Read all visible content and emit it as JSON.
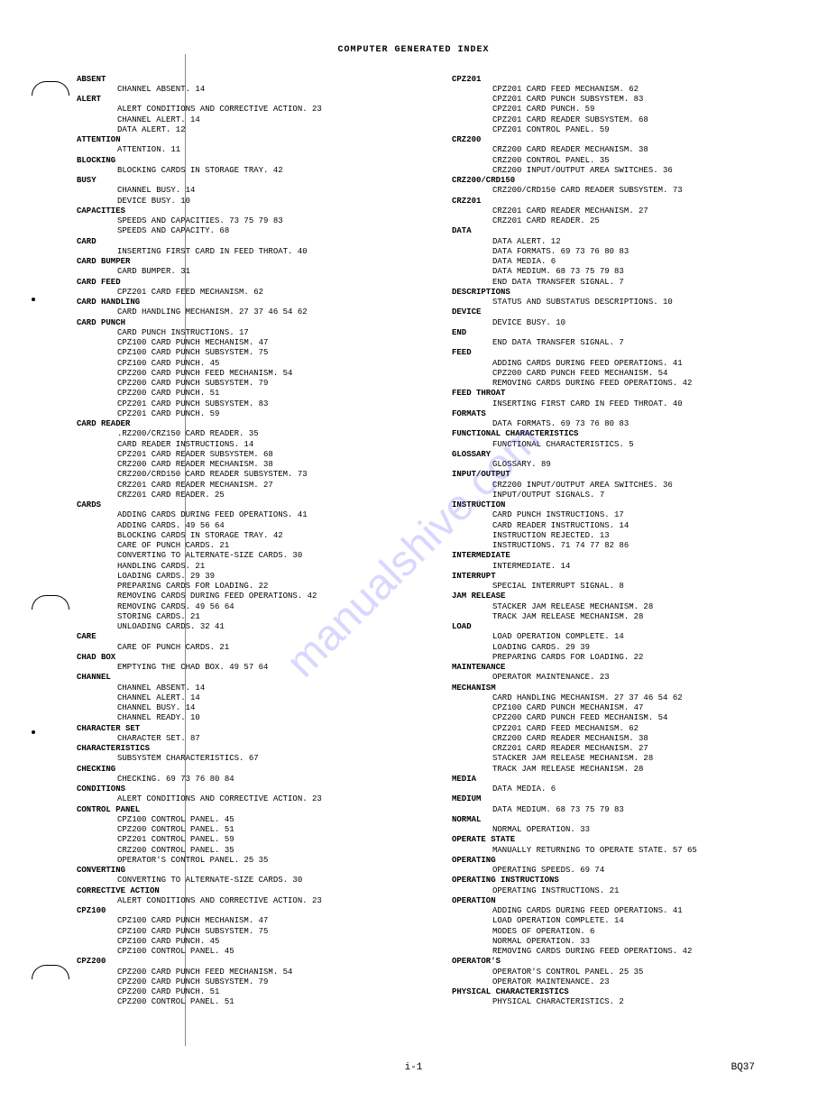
{
  "title": "COMPUTER GENERATED INDEX",
  "watermark": "manualshive.com",
  "footer": {
    "center": "i-1",
    "right": "BQ37"
  },
  "left_column": [
    {
      "term": "ABSENT",
      "entries": [
        "CHANNEL ABSENT. 14"
      ]
    },
    {
      "term": "ALERT",
      "entries": [
        "ALERT CONDITIONS AND CORRECTIVE ACTION. 23",
        "CHANNEL ALERT. 14",
        "DATA ALERT. 12"
      ]
    },
    {
      "term": "ATTENTION",
      "entries": [
        "ATTENTION. 11"
      ]
    },
    {
      "term": "BLOCKING",
      "entries": [
        "BLOCKING CARDS IN STORAGE TRAY. 42"
      ]
    },
    {
      "term": "BUSY",
      "entries": [
        "CHANNEL BUSY. 14",
        "DEVICE BUSY. 10"
      ]
    },
    {
      "term": "CAPACITIES",
      "entries": [
        "SPEEDS AND CAPACITIES. 73 75 79 83",
        "SPEEDS AND CAPACITY. 68"
      ]
    },
    {
      "term": "CARD",
      "entries": [
        "INSERTING FIRST CARD IN FEED THROAT. 40"
      ]
    },
    {
      "term": "CARD BUMPER",
      "entries": [
        "CARD BUMPER. 31"
      ]
    },
    {
      "term": "CARD FEED",
      "entries": [
        "CPZ201 CARD FEED MECHANISM. 62"
      ]
    },
    {
      "term": "CARD HANDLING",
      "entries": [
        "CARD HANDLING MECHANISM. 27 37 46 54 62"
      ]
    },
    {
      "term": "CARD PUNCH",
      "entries": [
        "CARD PUNCH INSTRUCTIONS. 17",
        "CPZ100 CARD PUNCH MECHANISM. 47",
        "CPZ100 CARD PUNCH SUBSYSTEM. 75",
        "CPZ100 CARD PUNCH. 45",
        "CPZ200 CARD PUNCH FEED MECHANISM. 54",
        "CPZ200 CARD PUNCH SUBSYSTEM. 79",
        "CPZ200 CARD PUNCH. 51",
        "CPZ201 CARD PUNCH SUBSYSTEM. 83",
        "CPZ201 CARD PUNCH. 59"
      ]
    },
    {
      "term": "CARD READER",
      "entries": [
        ".RZ200/CRZ150 CARD READER. 35",
        "CARD READER INSTRUCTIONS. 14",
        "CPZ201 CARD READER SUBSYSTEM. 68",
        "CRZ200 CARD READER MECHANISM. 38",
        "CRZ200/CRD150 CARD READER SUBSYSTEM. 73",
        "CRZ201 CARD READER MECHANISM. 27",
        "CRZ201 CARD READER. 25"
      ]
    },
    {
      "term": "CARDS",
      "entries": [
        "ADDING CARDS DURING FEED OPERATIONS. 41",
        "ADDING CARDS. 49 56 64",
        "BLOCKING CARDS IN STORAGE TRAY. 42",
        "CARE OF PUNCH CARDS. 21",
        "CONVERTING TO ALTERNATE-SIZE CARDS. 30",
        "HANDLING CARDS. 21",
        "LOADING CARDS. 29 39",
        "PREPARING CARDS FOR LOADING. 22",
        "REMOVING CARDS DURING FEED OPERATIONS. 42",
        "REMOVING CARDS. 49 56 64",
        "STORING CARDS. 21",
        "UNLOADING CARDS. 32 41"
      ]
    },
    {
      "term": "CARE",
      "entries": [
        "CARE OF PUNCH CARDS. 21"
      ]
    },
    {
      "term": "CHAD BOX",
      "entries": [
        "EMPTYING THE CHAD BOX. 49 57 64"
      ]
    },
    {
      "term": "CHANNEL",
      "entries": [
        "CHANNEL ABSENT. 14",
        "CHANNEL ALERT. 14",
        "CHANNEL BUSY. 14",
        "CHANNEL READY. 10"
      ]
    },
    {
      "term": "CHARACTER SET",
      "entries": [
        "CHARACTER SET. 87"
      ]
    },
    {
      "term": "CHARACTERISTICS",
      "entries": [
        "SUBSYSTEM CHARACTERISTICS. 67"
      ]
    },
    {
      "term": "CHECKING",
      "entries": [
        "CHECKING. 69 73 76 80 84"
      ]
    },
    {
      "term": "CONDITIONS",
      "entries": [
        "ALERT CONDITIONS AND CORRECTIVE ACTION. 23"
      ]
    },
    {
      "term": "CONTROL PANEL",
      "entries": [
        "CPZ100 CONTROL PANEL. 45",
        "CPZ200 CONTROL PANEL. 51",
        "CPZ201 CONTROL PANEL. 59",
        "CRZ200 CONTROL PANEL. 35",
        "OPERATOR'S CONTROL PANEL. 25 35"
      ]
    },
    {
      "term": "CONVERTING",
      "entries": [
        "CONVERTING TO ALTERNATE-SIZE CARDS. 30"
      ]
    },
    {
      "term": "CORRECTIVE ACTION",
      "entries": [
        "ALERT CONDITIONS AND CORRECTIVE ACTION. 23"
      ]
    },
    {
      "term": "CPZ100",
      "entries": [
        "CPZ100 CARD PUNCH MECHANISM. 47",
        "CPZ100 CARD PUNCH SUBSYSTEM. 75",
        "CPZ100 CARD PUNCH. 45",
        "CPZ100 CONTROL PANEL. 45"
      ]
    },
    {
      "term": "CPZ200",
      "entries": [
        "CPZ200 CARD PUNCH FEED MECHANISM. 54",
        "CPZ200 CARD PUNCH SUBSYSTEM. 79",
        "CPZ200 CARD PUNCH. 51",
        "CPZ200 CONTROL PANEL. 51"
      ]
    }
  ],
  "right_column": [
    {
      "term": "CPZ201",
      "entries": [
        "CPZ201 CARD FEED MECHANISM. 62",
        "CPZ201 CARD PUNCH SUBSYSTEM. 83",
        "CPZ201 CARD PUNCH. 59",
        "CPZ201 CARD READER SUBSYSTEM. 68",
        "CPZ201 CONTROL PANEL. 59"
      ]
    },
    {
      "term": "CRZ200",
      "entries": [
        "CRZ200 CARD READER MECHANISM. 38",
        "CRZ200 CONTROL PANEL. 35",
        "CRZ200 INPUT/OUTPUT AREA SWITCHES. 36"
      ]
    },
    {
      "term": "CRZ200/CRD150",
      "entries": [
        "CRZ200/CRD150 CARD READER SUBSYSTEM. 73"
      ]
    },
    {
      "term": "CRZ201",
      "entries": [
        "CRZ201 CARD READER MECHANISM. 27",
        "CRZ201 CARD READER. 25"
      ]
    },
    {
      "term": "DATA",
      "entries": [
        "DATA ALERT. 12",
        "DATA FORMATS. 69 73 76 80 83",
        "DATA MEDIA. 6",
        "DATA MEDIUM. 68 73 75 79 83",
        "END DATA TRANSFER SIGNAL. 7"
      ]
    },
    {
      "term": "DESCRIPTIONS",
      "entries": [
        "STATUS AND SUBSTATUS DESCRIPTIONS. 10"
      ]
    },
    {
      "term": "DEVICE",
      "entries": [
        "DEVICE BUSY. 10"
      ]
    },
    {
      "term": "END",
      "entries": [
        "END DATA TRANSFER SIGNAL. 7"
      ]
    },
    {
      "term": "FEED",
      "entries": [
        "ADDING CARDS DURING FEED OPERATIONS. 41",
        "CPZ200 CARD PUNCH FEED MECHANISM. 54",
        "REMOVING CARDS DURING FEED OPERATIONS. 42"
      ]
    },
    {
      "term": "FEED THROAT",
      "entries": [
        "INSERTING FIRST CARD IN FEED THROAT. 40"
      ]
    },
    {
      "term": "FORMATS",
      "entries": [
        "DATA FORMATS. 69 73 76 80 83"
      ]
    },
    {
      "term": "FUNCTIONAL CHARACTERISTICS",
      "entries": [
        "FUNCTIONAL CHARACTERISTICS. 5"
      ]
    },
    {
      "term": "GLOSSARY",
      "entries": [
        "GLOSSARY. 89"
      ]
    },
    {
      "term": "INPUT/OUTPUT",
      "entries": [
        "CRZ200 INPUT/OUTPUT AREA SWITCHES. 36",
        "INPUT/OUTPUT SIGNALS. 7"
      ]
    },
    {
      "term": "INSTRUCTION",
      "entries": [
        "CARD PUNCH INSTRUCTIONS. 17",
        "CARD READER INSTRUCTIONS. 14",
        "INSTRUCTION REJECTED. 13",
        "INSTRUCTIONS. 71 74 77 82 86"
      ]
    },
    {
      "term": "INTERMEDIATE",
      "entries": [
        "INTERMEDIATE. 14"
      ]
    },
    {
      "term": "INTERRUPT",
      "entries": [
        "SPECIAL INTERRUPT SIGNAL. 8"
      ]
    },
    {
      "term": "JAM RELEASE",
      "entries": [
        "STACKER JAM RELEASE MECHANISM. 28",
        "TRACK JAM RELEASE MECHANISM. 28"
      ]
    },
    {
      "term": "LOAD",
      "entries": [
        "LOAD OPERATION COMPLETE. 14",
        "LOADING CARDS. 29 39",
        "PREPARING CARDS FOR LOADING. 22"
      ]
    },
    {
      "term": "MAINTENANCE",
      "entries": [
        "OPERATOR MAINTENANCE. 23"
      ]
    },
    {
      "term": "MECHANISM",
      "entries": [
        "CARD HANDLING MECHANISM. 27 37 46 54 62",
        "CPZ100 CARD PUNCH MECHANISM. 47",
        "CPZ200 CARD PUNCH FEED MECHANISM. 54",
        "CPZ201 CARD FEED MECHANISM. 62",
        "CRZ200 CARD READER MECHANISM. 38",
        "CRZ201 CARD READER MECHANISM. 27",
        "STACKER JAM RELEASE MECHANISM. 28",
        "TRACK JAM RELEASE MECHANISM. 28"
      ]
    },
    {
      "term": "MEDIA",
      "entries": [
        "DATA MEDIA. 6"
      ]
    },
    {
      "term": "MEDIUM",
      "entries": [
        "DATA MEDIUM. 68 73 75 79 83"
      ]
    },
    {
      "term": "NORMAL",
      "entries": [
        "NORMAL OPERATION. 33"
      ]
    },
    {
      "term": "OPERATE STATE",
      "entries": [
        "MANUALLY RETURNING TO OPERATE STATE. 57 65"
      ]
    },
    {
      "term": "OPERATING",
      "entries": [
        "OPERATING SPEEDS. 69 74"
      ]
    },
    {
      "term": "OPERATING INSTRUCTIONS",
      "entries": [
        "OPERATING INSTRUCTIONS. 21"
      ]
    },
    {
      "term": "OPERATION",
      "entries": [
        "ADDING CARDS DURING FEED OPERATIONS. 41",
        "LOAD OPERATION COMPLETE. 14",
        "MODES OF OPERATION. 6",
        "NORMAL OPERATION. 33",
        "REMOVING CARDS DURING FEED OPERATIONS. 42"
      ]
    },
    {
      "term": "OPERATOR'S",
      "entries": [
        "OPERATOR'S CONTROL PANEL. 25 35",
        "OPERATOR MAINTENANCE. 23"
      ]
    },
    {
      "term": "PHYSICAL CHARACTERISTICS",
      "entries": [
        "PHYSICAL CHARACTERISTICS. 2"
      ]
    }
  ]
}
